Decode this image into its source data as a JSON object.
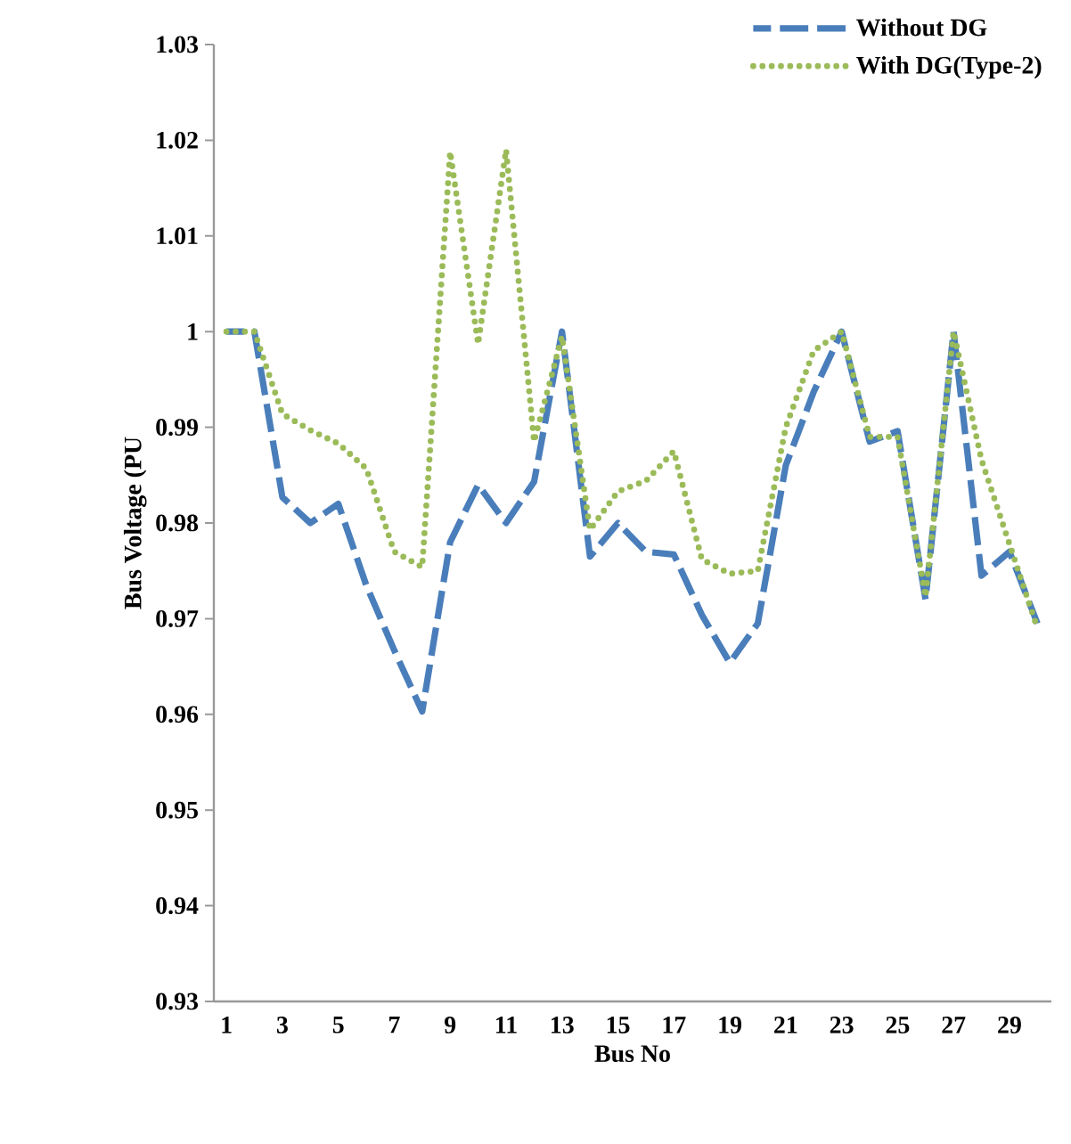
{
  "chart_data": {
    "type": "line",
    "xlabel": "Bus No",
    "ylabel": "Bus Voltage (PU",
    "categories": [
      "1",
      null,
      "3",
      null,
      "5",
      null,
      "7",
      null,
      "9",
      null,
      "11",
      null,
      "13",
      null,
      "15",
      null,
      "17",
      null,
      "19",
      null,
      "21",
      null,
      "23",
      null,
      "25",
      null,
      "27",
      null,
      "29",
      null
    ],
    "series": [
      {
        "name": "Without DG",
        "color": "#4a7ebb",
        "line_style": "dashed",
        "values": [
          1.0,
          1.0,
          0.9827,
          0.98,
          0.982,
          0.9735,
          0.9667,
          0.9603,
          0.978,
          0.984,
          0.98,
          0.9843,
          1.0,
          0.9765,
          0.98,
          0.977,
          0.9767,
          0.9704,
          0.9654,
          0.9695,
          0.986,
          0.9937,
          1.0,
          0.9885,
          0.9896,
          0.972,
          1.0,
          0.9745,
          0.977,
          0.9695
        ]
      },
      {
        "name": "With DG(Type-2)",
        "color": "#9bbb59",
        "line_style": "dotted",
        "values": [
          1.0,
          1.0,
          0.9914,
          0.9897,
          0.9883,
          0.9857,
          0.977,
          0.9754,
          1.0188,
          0.9987,
          1.019,
          0.9885,
          0.9995,
          0.9793,
          0.9833,
          0.9844,
          0.9875,
          0.9762,
          0.9747,
          0.975,
          0.99,
          0.998,
          1.0,
          0.989,
          0.989,
          0.9723,
          1.0,
          0.9866,
          0.9778,
          0.969
        ]
      }
    ],
    "ylim": [
      0.93,
      1.03
    ],
    "yticks": [
      0.93,
      0.94,
      0.95,
      0.96,
      0.97,
      0.98,
      0.99,
      {
        "value": 1,
        "label": "1"
      },
      1.01,
      1.02,
      1.03
    ],
    "legend": "top right",
    "grid": false,
    "marker": "none"
  }
}
